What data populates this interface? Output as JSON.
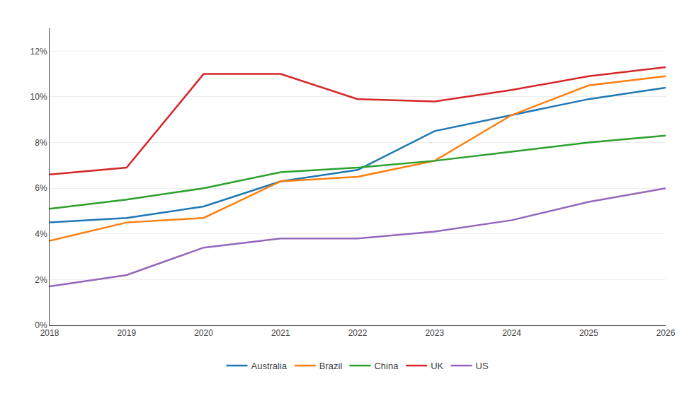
{
  "chart_data": {
    "type": "line",
    "x": [
      2018,
      2019,
      2020,
      2021,
      2022,
      2023,
      2024,
      2025,
      2026
    ],
    "series": [
      {
        "name": "Australia",
        "values": [
          0.045,
          0.047,
          0.052,
          0.063,
          0.068,
          0.085,
          0.092,
          0.099,
          0.104
        ]
      },
      {
        "name": "Brazil",
        "values": [
          0.037,
          0.045,
          0.047,
          0.063,
          0.065,
          0.072,
          0.092,
          0.105,
          0.109
        ]
      },
      {
        "name": "China",
        "values": [
          0.051,
          0.055,
          0.06,
          0.067,
          0.069,
          0.072,
          0.076,
          0.08,
          0.083
        ]
      },
      {
        "name": "UK",
        "values": [
          0.066,
          0.069,
          0.11,
          0.11,
          0.099,
          0.098,
          0.103,
          0.109,
          0.113
        ]
      },
      {
        "name": "US",
        "values": [
          0.017,
          0.022,
          0.034,
          0.038,
          0.038,
          0.041,
          0.046,
          0.054,
          0.06
        ]
      }
    ],
    "xlim": [
      2018,
      2026
    ],
    "xticks": [
      2018,
      2019,
      2020,
      2021,
      2022,
      2023,
      2024,
      2025,
      2026
    ],
    "ylim": [
      0,
      0.13
    ],
    "yticks": [
      {
        "value": 0,
        "label": "0%"
      },
      {
        "value": 0.02,
        "label": "2%"
      },
      {
        "value": 0.04,
        "label": "4%"
      },
      {
        "value": 0.06,
        "label": "6%"
      },
      {
        "value": 0.08,
        "label": "8%"
      },
      {
        "value": 0.1,
        "label": "10%"
      },
      {
        "value": 0.12,
        "label": "12%"
      }
    ],
    "grid": true,
    "legend": "bottom"
  }
}
